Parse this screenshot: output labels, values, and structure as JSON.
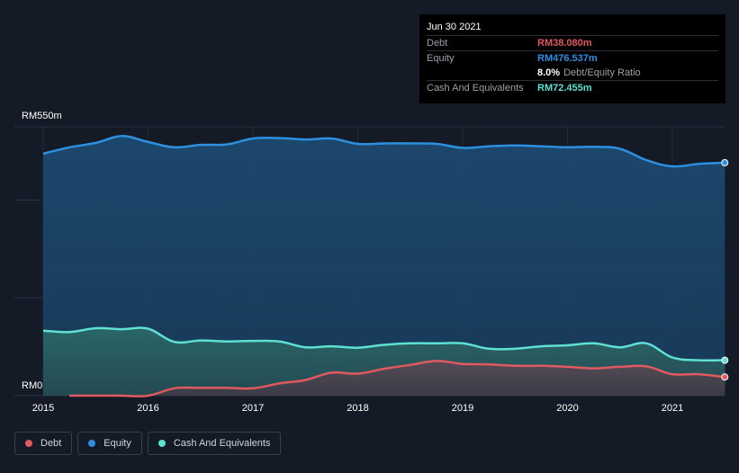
{
  "chart_data": {
    "type": "area",
    "currency_prefix": "RM",
    "y_top_label": "RM550m",
    "y_bottom_label": "RM0",
    "ylim": [
      0,
      550
    ],
    "xlim": [
      2014.85,
      2021.5
    ],
    "x_ticks": [
      "2015",
      "2016",
      "2017",
      "2018",
      "2019",
      "2020",
      "2021"
    ],
    "grid": true,
    "legend_position": "bottom-left",
    "series": [
      {
        "name": "Debt",
        "color": "#e0595e",
        "x": [
          2015.25,
          2015.5,
          2015.75,
          2016.0,
          2016.25,
          2016.5,
          2016.75,
          2017.0,
          2017.25,
          2017.5,
          2017.75,
          2018.0,
          2018.25,
          2018.5,
          2018.75,
          2019.0,
          2019.25,
          2019.5,
          2019.75,
          2020.0,
          2020.25,
          2020.5,
          2020.75,
          2021.0,
          2021.25,
          2021.5
        ],
        "values": [
          0,
          0,
          0,
          0,
          15,
          16,
          16,
          15,
          25,
          32,
          47,
          45,
          55,
          63,
          71,
          65,
          64,
          61,
          61,
          59,
          56,
          59,
          60,
          44,
          44,
          38.08
        ]
      },
      {
        "name": "Equity",
        "color": "#2d8fe0",
        "x": [
          2015.0,
          2015.25,
          2015.5,
          2015.75,
          2016.0,
          2016.25,
          2016.5,
          2016.75,
          2017.0,
          2017.25,
          2017.5,
          2017.75,
          2018.0,
          2018.25,
          2018.5,
          2018.75,
          2019.0,
          2019.25,
          2019.5,
          2019.75,
          2020.0,
          2020.25,
          2020.5,
          2020.75,
          2021.0,
          2021.25,
          2021.5
        ],
        "values": [
          495,
          508,
          517,
          531,
          519,
          508,
          513,
          514,
          526,
          527,
          524,
          526,
          515,
          516,
          516,
          515,
          507,
          510,
          512,
          510,
          508,
          509,
          505,
          482,
          469,
          474,
          476.537
        ]
      },
      {
        "name": "Cash And Equivalents",
        "color": "#5ee0d2",
        "x": [
          2015.0,
          2015.25,
          2015.5,
          2015.75,
          2016.0,
          2016.25,
          2016.5,
          2016.75,
          2017.0,
          2017.25,
          2017.5,
          2017.75,
          2018.0,
          2018.25,
          2018.5,
          2018.75,
          2019.0,
          2019.25,
          2019.5,
          2019.75,
          2020.0,
          2020.25,
          2020.5,
          2020.75,
          2021.0,
          2021.25,
          2021.5
        ],
        "values": [
          133,
          130,
          138,
          136,
          137,
          110,
          113,
          111,
          112,
          111,
          99,
          101,
          98,
          104,
          107,
          107,
          107,
          96,
          96,
          101,
          103,
          107,
          99,
          107,
          78,
          72.5,
          72.455
        ]
      }
    ]
  },
  "tooltip": {
    "date": "Jun 30 2021",
    "rows": [
      {
        "label": "Debt",
        "value": "RM38.080m",
        "color": "#e0595e"
      },
      {
        "label": "Equity",
        "value": "RM476.537m",
        "color": "#2d8fe0"
      }
    ],
    "ratio_value": "8.0%",
    "ratio_label": "Debt/Equity Ratio",
    "cash_row": {
      "label": "Cash And Equivalents",
      "value": "RM72.455m",
      "color": "#5ee0d2"
    }
  },
  "legend": [
    {
      "label": "Debt",
      "color": "#e0595e"
    },
    {
      "label": "Equity",
      "color": "#2d8fe0"
    },
    {
      "label": "Cash And Equivalents",
      "color": "#5ee0d2"
    }
  ]
}
